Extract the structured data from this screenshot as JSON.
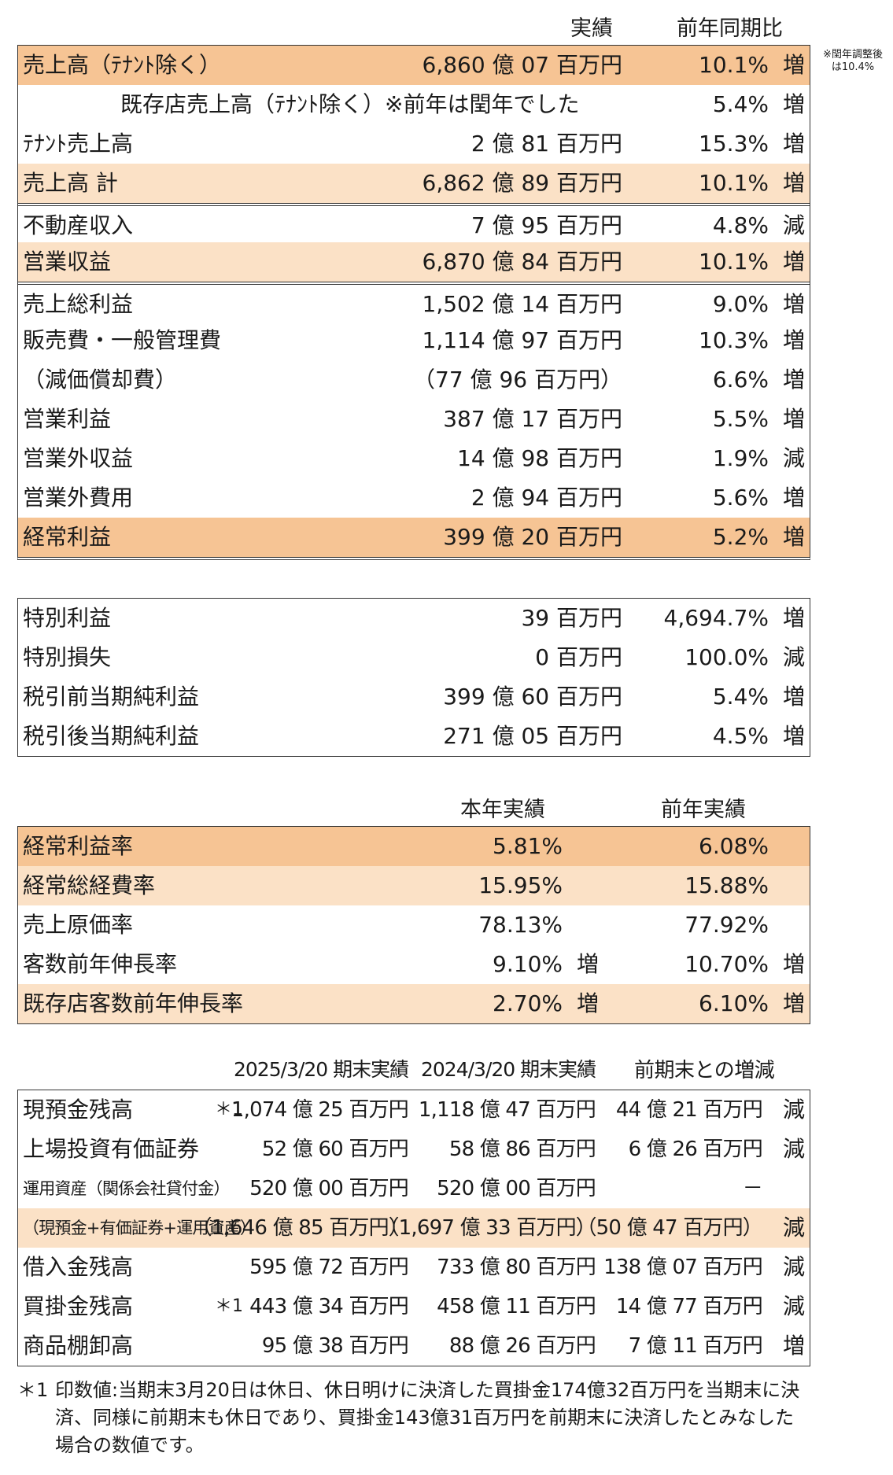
{
  "section1": {
    "headers": {
      "amount": "実績",
      "ratio": "前年同期比"
    },
    "side_note": [
      "※閏年調整後",
      "は10.4%"
    ],
    "rows": [
      {
        "label": "売上高（ﾃﾅﾝﾄ除く）",
        "amount": "6,860 億 07 百万円",
        "pct": "10.1%",
        "chg": "増",
        "bg": "dark"
      },
      {
        "label": "既存店売上高（ﾃﾅﾝﾄ除く）※前年は閏年でした",
        "amount": "",
        "pct": "5.4%",
        "chg": "増",
        "bg": "",
        "indent": true
      },
      {
        "label": "ﾃﾅﾝﾄ売上高",
        "amount": "2 億 81 百万円",
        "pct": "15.3%",
        "chg": "増",
        "bg": ""
      },
      {
        "label": "売上高 計",
        "amount": "6,862 億 89 百万円",
        "pct": "10.1%",
        "chg": "増",
        "bg": "light"
      },
      {
        "label": "不動産収入",
        "amount": "7 億 95 百万円",
        "pct": "4.8%",
        "chg": "減",
        "bg": "",
        "sep": true
      },
      {
        "label": "営業収益",
        "amount": "6,870 億 84 百万円",
        "pct": "10.1%",
        "chg": "増",
        "bg": "light"
      },
      {
        "label": "売上総利益",
        "amount": "1,502 億 14 百万円",
        "pct": "9.0%",
        "chg": "増",
        "bg": "",
        "sep": true
      },
      {
        "label": "販売費・一般管理費",
        "amount": "1,114 億 97 百万円",
        "pct": "10.3%",
        "chg": "増",
        "bg": ""
      },
      {
        "label": "（減価償却費）",
        "amount": "（77 億 96 百万円）",
        "pct": "6.6%",
        "chg": "増",
        "bg": ""
      },
      {
        "label": "営業利益",
        "amount": "387 億 17 百万円",
        "pct": "5.5%",
        "chg": "増",
        "bg": ""
      },
      {
        "label": "営業外収益",
        "amount": "14 億 98 百万円",
        "pct": "1.9%",
        "chg": "減",
        "bg": ""
      },
      {
        "label": "営業外費用",
        "amount": "2 億 94 百万円",
        "pct": "5.6%",
        "chg": "増",
        "bg": ""
      },
      {
        "label": "経常利益",
        "amount": "399 億 20 百万円",
        "pct": "5.2%",
        "chg": "増",
        "bg": "dark"
      }
    ]
  },
  "section2": {
    "rows": [
      {
        "label": "特別利益",
        "amount": "39 百万円",
        "pct": "4,694.7%",
        "chg": "増"
      },
      {
        "label": "特別損失",
        "amount": "0 百万円",
        "pct": "100.0%",
        "chg": "減"
      },
      {
        "label": "税引前当期純利益",
        "amount": "399 億 60 百万円",
        "pct": "5.4%",
        "chg": "増"
      },
      {
        "label": "税引後当期純利益",
        "amount": "271 億 05 百万円",
        "pct": "4.5%",
        "chg": "増"
      }
    ]
  },
  "section3": {
    "headers": {
      "current": "本年実績",
      "previous": "前年実績"
    },
    "rows": [
      {
        "label": "経常利益率",
        "current": "5.81%",
        "cur_chg": "",
        "previous": "6.08%",
        "prev_chg": "",
        "bg": "dark"
      },
      {
        "label": "経常総経費率",
        "current": "15.95%",
        "cur_chg": "",
        "previous": "15.88%",
        "prev_chg": "",
        "bg": "light"
      },
      {
        "label": "売上原価率",
        "current": "78.13%",
        "cur_chg": "",
        "previous": "77.92%",
        "prev_chg": "",
        "bg": ""
      },
      {
        "label": "客数前年伸長率",
        "current": "9.10%",
        "cur_chg": "増",
        "previous": "10.70%",
        "prev_chg": "増",
        "bg": ""
      },
      {
        "label": "既存店客数前年伸長率",
        "current": "2.70%",
        "cur_chg": "増",
        "previous": "6.10%",
        "prev_chg": "増",
        "bg": "light"
      }
    ]
  },
  "section4": {
    "headers": {
      "col1": "2025/3/20 期末実績",
      "col2": "2024/3/20 期末実績",
      "col3": "前期末との増減"
    },
    "rows": [
      {
        "label": "現預金残高",
        "mark": "＊1",
        "v1": "1,074 億 25 百万円",
        "v2": "1,118 億 47 百万円",
        "v3": "44 億 21 百万円",
        "v4": "減",
        "bg": ""
      },
      {
        "label": "上場投資有価証券",
        "mark": "",
        "v1": "52 億 60 百万円",
        "v2": "58 億 86 百万円",
        "v3": "6 億 26 百万円",
        "v4": "減",
        "bg": ""
      },
      {
        "label": "運用資産（関係会社貸付金）",
        "mark": "",
        "v1": "520 億 00 百万円",
        "v2": "520 億 00 百万円",
        "v3": "－",
        "v4": "",
        "bg": "",
        "small": true
      },
      {
        "label": "（現預金+有価証券+運用資産）",
        "mark": "",
        "v1": "（1,646 億 85 百万円）",
        "v2": "（1,697 億 33 百万円）",
        "v3": "（50 億 47 百万円）",
        "v4": "減",
        "bg": "light",
        "small": true
      },
      {
        "label": "借入金残高",
        "mark": "",
        "v1": "595 億 72 百万円",
        "v2": "733 億 80 百万円",
        "v3": "138 億 07 百万円",
        "v4": "減",
        "bg": ""
      },
      {
        "label": "買掛金残高",
        "mark": "＊1",
        "v1": "443 億 34 百万円",
        "v2": "458 億 11 百万円",
        "v3": "14 億 77 百万円",
        "v4": "減",
        "bg": ""
      },
      {
        "label": "商品棚卸高",
        "mark": "",
        "v1": "95 億 38 百万円",
        "v2": "88 億 26 百万円",
        "v3": "7 億 11 百万円",
        "v4": "増",
        "bg": ""
      }
    ]
  },
  "footnote": {
    "mark": "＊1",
    "text": "印数値:当期末3月20日は休日、休日明けに決済した買掛金174億32百万円を当期末に決済、同様に前期末も休日であり、買掛金143億31百万円を前期末に決済したとみなした場合の数値です。"
  }
}
